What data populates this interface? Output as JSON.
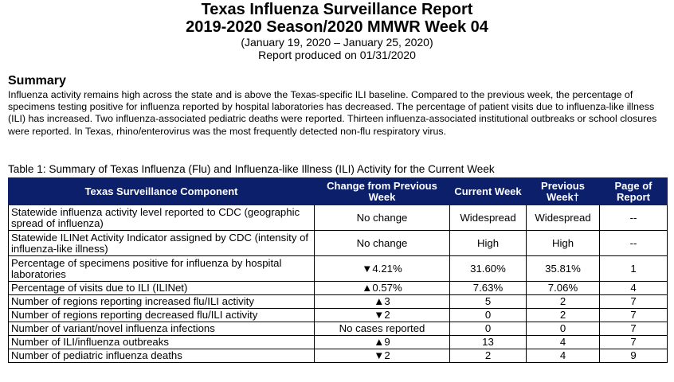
{
  "header": {
    "title_line1": "Texas Influenza Surveillance Report",
    "title_line2": "2019-2020 Season/2020 MMWR Week 04",
    "date_range": "(January 19, 2020 – January 25, 2020)",
    "produced": "Report produced on 01/31/2020"
  },
  "summary": {
    "heading": "Summary",
    "text": "Influenza activity remains high across the state and is above the Texas-specific ILI baseline. Compared to the previous week, the percentage of specimens testing positive for influenza reported by hospital laboratories has decreased. The percentage of patient visits due to influenza-like illness (ILI) has increased. Two influenza-associated pediatric deaths were reported. Thirteen influenza-associated institutional outbreaks or school closures were reported.  In Texas, rhino/enterovirus was the most frequently detected non-flu respiratory virus."
  },
  "table": {
    "caption": "Table 1: Summary of Texas Influenza (Flu) and Influenza-like Illness (ILI) Activity for the Current Week",
    "headers": [
      "Texas Surveillance Component",
      "Change from Previous Week",
      "Current Week",
      "Previous Week†",
      "Page of Report"
    ],
    "rows": [
      [
        "Statewide influenza activity level reported to CDC (geographic spread of influenza)",
        "No change",
        "Widespread",
        "Widespread",
        "--"
      ],
      [
        "Statewide ILINet Activity Indicator assigned by CDC (intensity of influenza-like illness)",
        "No change",
        "High",
        "High",
        "--"
      ],
      [
        "Percentage of specimens positive for influenza by hospital laboratories",
        "▼4.21%",
        "31.60%",
        "35.81%",
        "1"
      ],
      [
        "Percentage of visits due to ILI (ILINet)",
        "▲0.57%",
        "7.63%",
        "7.06%",
        "4"
      ],
      [
        "Number of regions reporting increased flu/ILI activity",
        "▲3",
        "5",
        "2",
        "7"
      ],
      [
        "Number of regions reporting decreased flu/ILI activity",
        "▼2",
        "0",
        "2",
        "7"
      ],
      [
        "Number of variant/novel influenza infections",
        "No cases reported",
        "0",
        "0",
        "7"
      ],
      [
        "Number of ILI/influenza outbreaks",
        "▲9",
        "13",
        "4",
        "7"
      ],
      [
        "Number of pediatric influenza deaths",
        "▼2",
        "2",
        "4",
        "9"
      ]
    ]
  }
}
